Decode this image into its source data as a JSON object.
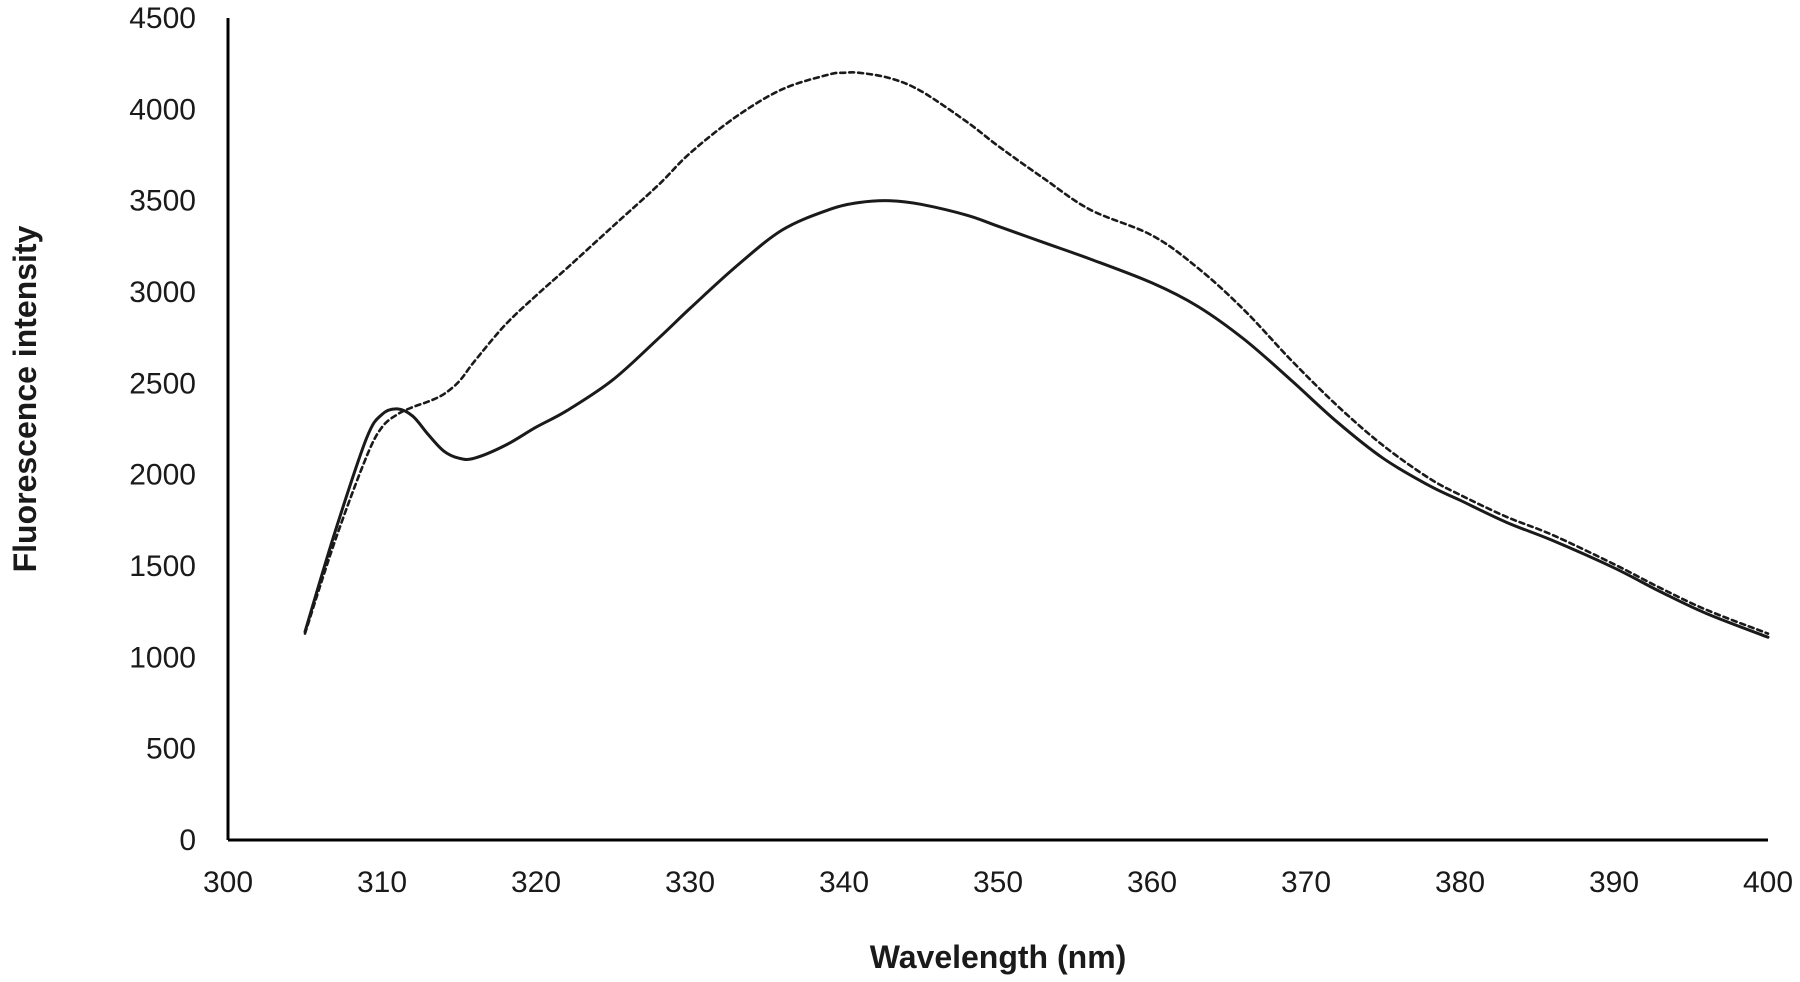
{
  "chart_data": {
    "type": "line",
    "title": "",
    "xlabel": "Wavelength (nm)",
    "ylabel": "Fluorescence  intensity",
    "xlim": [
      300,
      400
    ],
    "ylim": [
      0,
      4500
    ],
    "xticks": [
      300,
      310,
      320,
      330,
      340,
      350,
      360,
      370,
      380,
      390,
      400
    ],
    "yticks": [
      0,
      500,
      1000,
      1500,
      2000,
      2500,
      3000,
      3500,
      4000,
      4500
    ],
    "grid": false,
    "legend": "none",
    "series": [
      {
        "style": "solid",
        "color": "#1a1a1a",
        "x": [
          305,
          307,
          309,
          310,
          311,
          312,
          313,
          314,
          315,
          316,
          318,
          320,
          322,
          325,
          328,
          330,
          333,
          336,
          339,
          341,
          343,
          345,
          348,
          350,
          353,
          356,
          360,
          363,
          366,
          369,
          372,
          375,
          378,
          380,
          383,
          386,
          390,
          393,
          396,
          400
        ],
        "y": [
          1140,
          1700,
          2200,
          2330,
          2360,
          2320,
          2220,
          2130,
          2090,
          2090,
          2160,
          2260,
          2350,
          2520,
          2750,
          2910,
          3140,
          3340,
          3450,
          3490,
          3500,
          3480,
          3420,
          3360,
          3270,
          3180,
          3050,
          2920,
          2740,
          2520,
          2290,
          2090,
          1940,
          1860,
          1740,
          1640,
          1490,
          1360,
          1240,
          1110
        ]
      },
      {
        "style": "dashed",
        "color": "#1a1a1a",
        "x": [
          305,
          307,
          309,
          310,
          311,
          312,
          313,
          314,
          315,
          316,
          318,
          320,
          322,
          325,
          328,
          330,
          333,
          336,
          339,
          340,
          341,
          343,
          345,
          348,
          350,
          353,
          356,
          360,
          363,
          366,
          369,
          372,
          375,
          378,
          380,
          383,
          386,
          390,
          393,
          396,
          400
        ],
        "y": [
          1130,
          1650,
          2100,
          2260,
          2330,
          2370,
          2400,
          2440,
          2510,
          2620,
          2820,
          2980,
          3130,
          3360,
          3590,
          3760,
          3960,
          4110,
          4190,
          4200,
          4200,
          4170,
          4100,
          3930,
          3800,
          3620,
          3450,
          3310,
          3130,
          2900,
          2630,
          2380,
          2160,
          1980,
          1890,
          1770,
          1670,
          1510,
          1380,
          1260,
          1130
        ]
      }
    ]
  }
}
